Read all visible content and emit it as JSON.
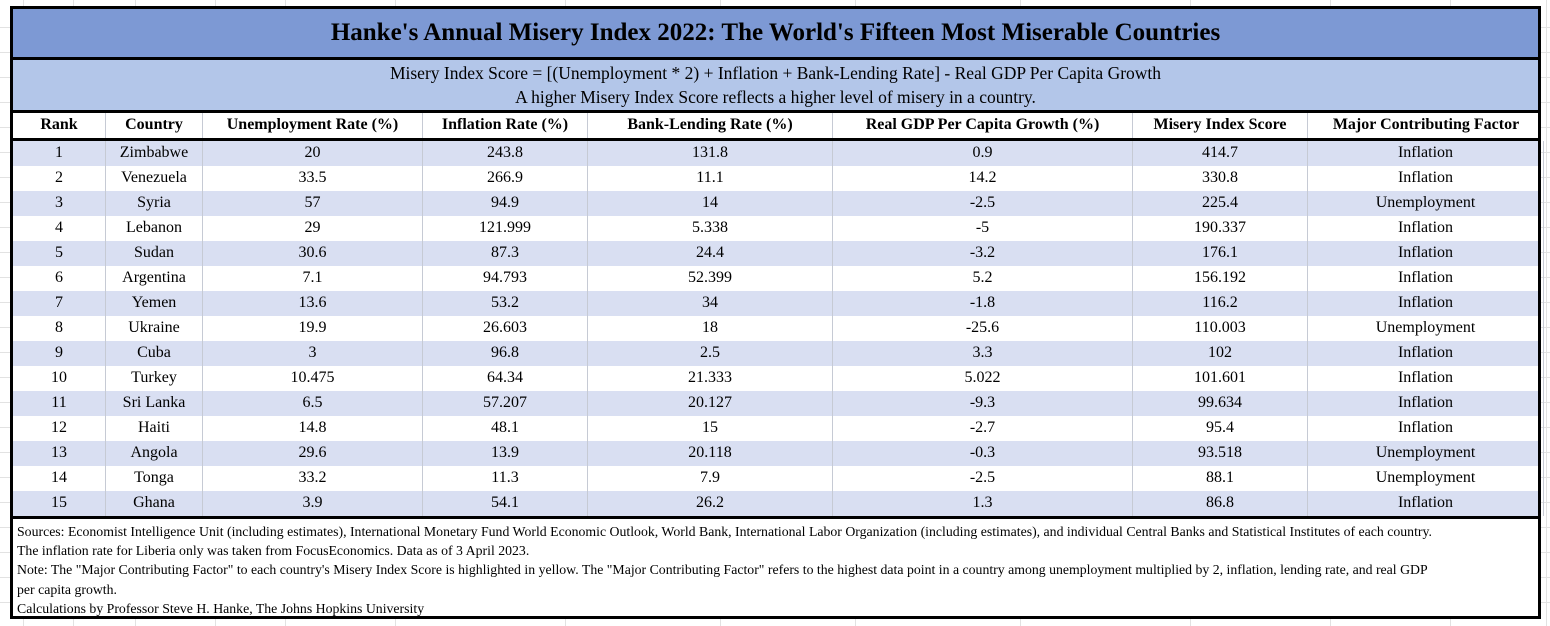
{
  "title": "Hanke's Annual Misery Index 2022: The World's Fifteen Most Miserable Countries",
  "subtitle": {
    "line1": "Misery Index Score = [(Unemployment * 2) + Inflation + Bank-Lending Rate] - Real GDP Per Capita Growth",
    "line2": "A higher Misery Index Score reflects a higher level of misery in a country."
  },
  "table": {
    "columns": [
      "Rank",
      "Country",
      "Unemployment Rate (%)",
      "Inflation Rate (%)",
      "Bank-Lending Rate (%)",
      "Real GDP Per Capita Growth (%)",
      "Misery Index Score",
      "Major Contributing Factor"
    ],
    "rows": [
      [
        "1",
        "Zimbabwe",
        "20",
        "243.8",
        "131.8",
        "0.9",
        "414.7",
        "Inflation"
      ],
      [
        "2",
        "Venezuela",
        "33.5",
        "266.9",
        "11.1",
        "14.2",
        "330.8",
        "Inflation"
      ],
      [
        "3",
        "Syria",
        "57",
        "94.9",
        "14",
        "-2.5",
        "225.4",
        "Unemployment"
      ],
      [
        "4",
        "Lebanon",
        "29",
        "121.999",
        "5.338",
        "-5",
        "190.337",
        "Inflation"
      ],
      [
        "5",
        "Sudan",
        "30.6",
        "87.3",
        "24.4",
        "-3.2",
        "176.1",
        "Inflation"
      ],
      [
        "6",
        "Argentina",
        "7.1",
        "94.793",
        "52.399",
        "5.2",
        "156.192",
        "Inflation"
      ],
      [
        "7",
        "Yemen",
        "13.6",
        "53.2",
        "34",
        "-1.8",
        "116.2",
        "Inflation"
      ],
      [
        "8",
        "Ukraine",
        "19.9",
        "26.603",
        "18",
        "-25.6",
        "110.003",
        "Unemployment"
      ],
      [
        "9",
        "Cuba",
        "3",
        "96.8",
        "2.5",
        "3.3",
        "102",
        "Inflation"
      ],
      [
        "10",
        "Turkey",
        "10.475",
        "64.34",
        "21.333",
        "5.022",
        "101.601",
        "Inflation"
      ],
      [
        "11",
        "Sri Lanka",
        "6.5",
        "57.207",
        "20.127",
        "-9.3",
        "99.634",
        "Inflation"
      ],
      [
        "12",
        "Haiti",
        "14.8",
        "48.1",
        "15",
        "-2.7",
        "95.4",
        "Inflation"
      ],
      [
        "13",
        "Angola",
        "29.6",
        "13.9",
        "20.118",
        "-0.3",
        "93.518",
        "Unemployment"
      ],
      [
        "14",
        "Tonga",
        "33.2",
        "11.3",
        "7.9",
        "-2.5",
        "88.1",
        "Unemployment"
      ],
      [
        "15",
        "Ghana",
        "3.9",
        "54.1",
        "26.2",
        "1.3",
        "86.8",
        "Inflation"
      ]
    ]
  },
  "footer": {
    "lines": [
      "Sources: Economist Intelligence Unit (including estimates), International Monetary Fund World Economic Outlook, World Bank, International Labor Organization (including estimates), and individual Central Banks and Statistical Institutes of each country.",
      "The inflation rate for Liberia only was taken from FocusEconomics. Data as of 3 April 2023.",
      "Note: The \"Major Contributing Factor\" to each country's Misery Index Score is highlighted in yellow. The \"Major Contributing Factor\" refers to the highest data point in a country among unemployment multiplied by 2, inflation, lending rate, and real GDP",
      "per capita growth.",
      "Calculations by Professor Steve H. Hanke, The Johns Hopkins University"
    ]
  },
  "colors": {
    "title_band": "#7D99D4",
    "subtitle_band": "#B3C6E9",
    "row_stripe": "#D9DFF2",
    "border": "#000000",
    "gridline": "#E2E2E2"
  }
}
